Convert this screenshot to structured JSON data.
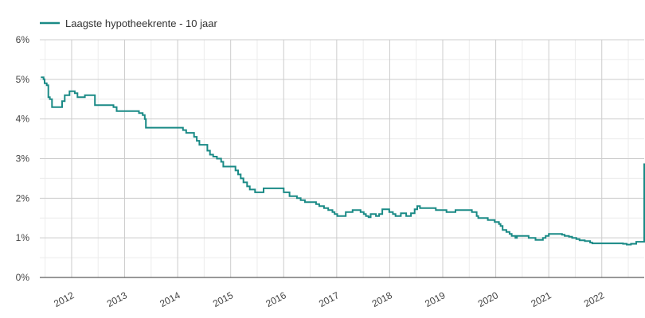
{
  "chart_data": {
    "type": "line",
    "title": "",
    "xlabel": "",
    "ylabel": "",
    "legend": {
      "position": "top-left",
      "entries": [
        "Laagste hypotheekrente - 10 jaar"
      ]
    },
    "grid": true,
    "colors": {
      "series": "#1a8a86",
      "grid_major": "#cccccc",
      "grid_minor": "#ececec",
      "axis": "#333333"
    },
    "ylim": [
      0,
      6
    ],
    "y_ticks": [
      0,
      1,
      2,
      3,
      4,
      5,
      6
    ],
    "y_tick_labels": [
      "0%",
      "1%",
      "2%",
      "3%",
      "4%",
      "5%",
      "6%"
    ],
    "xlim": [
      2011.4,
      2022.8
    ],
    "x_ticks": [
      2012,
      2013,
      2014,
      2015,
      2016,
      2017,
      2018,
      2019,
      2020,
      2021,
      2022
    ],
    "x_tick_labels": [
      "2012",
      "2013",
      "2014",
      "2015",
      "2016",
      "2017",
      "2018",
      "2019",
      "2020",
      "2021",
      "2022"
    ],
    "series": [
      {
        "name": "Laagste hypotheekrente - 10 jaar",
        "step": true,
        "points": [
          [
            2011.42,
            5.05
          ],
          [
            2011.47,
            5.0
          ],
          [
            2011.49,
            4.9
          ],
          [
            2011.53,
            4.85
          ],
          [
            2011.56,
            4.55
          ],
          [
            2011.59,
            4.5
          ],
          [
            2011.63,
            4.3
          ],
          [
            2011.82,
            4.45
          ],
          [
            2011.87,
            4.6
          ],
          [
            2011.96,
            4.7
          ],
          [
            2012.06,
            4.65
          ],
          [
            2012.11,
            4.55
          ],
          [
            2012.25,
            4.6
          ],
          [
            2012.44,
            4.35
          ],
          [
            2012.79,
            4.3
          ],
          [
            2012.85,
            4.2
          ],
          [
            2013.27,
            4.15
          ],
          [
            2013.34,
            4.1
          ],
          [
            2013.38,
            4.0
          ],
          [
            2013.4,
            3.78
          ],
          [
            2014.1,
            3.72
          ],
          [
            2014.16,
            3.65
          ],
          [
            2014.31,
            3.55
          ],
          [
            2014.36,
            3.45
          ],
          [
            2014.41,
            3.35
          ],
          [
            2014.56,
            3.2
          ],
          [
            2014.61,
            3.1
          ],
          [
            2014.67,
            3.05
          ],
          [
            2014.74,
            3.0
          ],
          [
            2014.82,
            2.92
          ],
          [
            2014.86,
            2.8
          ],
          [
            2015.09,
            2.7
          ],
          [
            2015.14,
            2.6
          ],
          [
            2015.19,
            2.5
          ],
          [
            2015.24,
            2.4
          ],
          [
            2015.31,
            2.3
          ],
          [
            2015.36,
            2.22
          ],
          [
            2015.46,
            2.15
          ],
          [
            2015.62,
            2.25
          ],
          [
            2016.0,
            2.15
          ],
          [
            2016.11,
            2.05
          ],
          [
            2016.25,
            2.0
          ],
          [
            2016.32,
            1.95
          ],
          [
            2016.4,
            1.9
          ],
          [
            2016.61,
            1.85
          ],
          [
            2016.67,
            1.8
          ],
          [
            2016.76,
            1.75
          ],
          [
            2016.84,
            1.7
          ],
          [
            2016.92,
            1.65
          ],
          [
            2016.96,
            1.6
          ],
          [
            2017.01,
            1.55
          ],
          [
            2017.17,
            1.65
          ],
          [
            2017.3,
            1.7
          ],
          [
            2017.4,
            1.7
          ],
          [
            2017.45,
            1.65
          ],
          [
            2017.51,
            1.6
          ],
          [
            2017.55,
            1.55
          ],
          [
            2017.6,
            1.52
          ],
          [
            2017.64,
            1.6
          ],
          [
            2017.68,
            1.6
          ],
          [
            2017.74,
            1.55
          ],
          [
            2017.8,
            1.6
          ],
          [
            2017.86,
            1.72
          ],
          [
            2017.99,
            1.65
          ],
          [
            2018.06,
            1.6
          ],
          [
            2018.11,
            1.55
          ],
          [
            2018.21,
            1.62
          ],
          [
            2018.31,
            1.55
          ],
          [
            2018.4,
            1.62
          ],
          [
            2018.47,
            1.72
          ],
          [
            2018.52,
            1.8
          ],
          [
            2018.57,
            1.75
          ],
          [
            2018.87,
            1.7
          ],
          [
            2019.07,
            1.65
          ],
          [
            2019.24,
            1.7
          ],
          [
            2019.55,
            1.65
          ],
          [
            2019.64,
            1.55
          ],
          [
            2019.67,
            1.5
          ],
          [
            2019.85,
            1.45
          ],
          [
            2019.98,
            1.4
          ],
          [
            2020.06,
            1.35
          ],
          [
            2020.09,
            1.3
          ],
          [
            2020.13,
            1.2
          ],
          [
            2020.2,
            1.15
          ],
          [
            2020.26,
            1.1
          ],
          [
            2020.3,
            1.05
          ],
          [
            2020.37,
            1.0
          ],
          [
            2020.4,
            1.05
          ],
          [
            2020.62,
            1.0
          ],
          [
            2020.75,
            0.95
          ],
          [
            2020.86,
            0.95
          ],
          [
            2020.89,
            1.0
          ],
          [
            2020.94,
            1.05
          ],
          [
            2021.0,
            1.1
          ],
          [
            2021.25,
            1.08
          ],
          [
            2021.3,
            1.05
          ],
          [
            2021.38,
            1.03
          ],
          [
            2021.44,
            1.0
          ],
          [
            2021.52,
            0.97
          ],
          [
            2021.58,
            0.94
          ],
          [
            2021.68,
            0.92
          ],
          [
            2021.78,
            0.88
          ],
          [
            2021.82,
            0.86
          ],
          [
            2022.4,
            0.85
          ],
          [
            2022.47,
            0.83
          ],
          [
            2022.55,
            0.85
          ],
          [
            2022.65,
            0.9
          ],
          [
            2022.85,
            0.92
          ],
          [
            2022.9,
            1.0
          ],
          [
            2022.95,
            1.15
          ],
          [
            2022.97,
            1.3
          ],
          [
            2023.0,
            1.5
          ],
          [
            2023.05,
            1.7
          ],
          [
            2023.1,
            1.95
          ],
          [
            2023.15,
            2.2
          ],
          [
            2023.2,
            2.45
          ],
          [
            2023.25,
            2.65
          ],
          [
            2023.3,
            2.8
          ],
          [
            2023.35,
            2.88
          ]
        ]
      }
    ]
  }
}
